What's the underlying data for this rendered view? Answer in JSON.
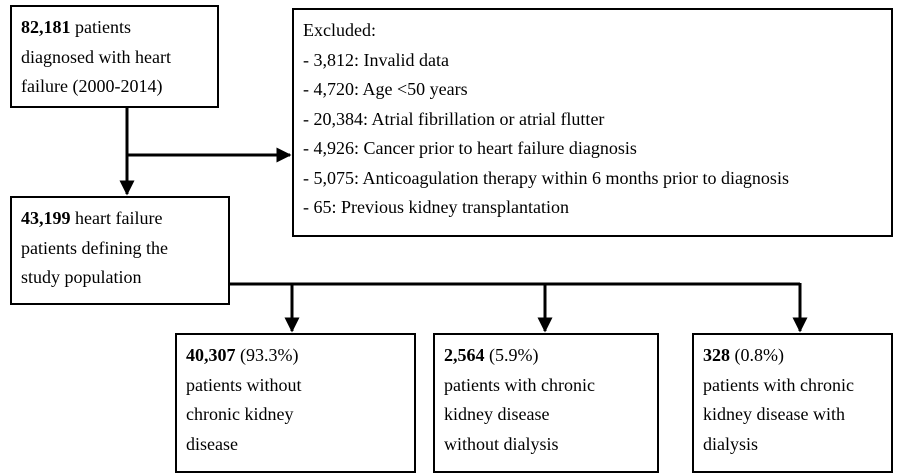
{
  "nodes": [
    {
      "count": "82,181",
      "lines": [
        "patients",
        "diagnosed with heart",
        "failure (2000-2014)"
      ]
    },
    {
      "count": "43,199",
      "lines": [
        "heart failure",
        "patients defining the",
        "study population"
      ]
    },
    {
      "count": "40,307",
      "lines": [
        "(93.3%)",
        "patients without",
        "chronic kidney",
        "disease"
      ]
    },
    {
      "count": "2,564",
      "lines": [
        "(5.9%)",
        "patients with chronic",
        "kidney disease",
        "without dialysis"
      ]
    },
    {
      "count": "328",
      "lines": [
        "(0.8%)",
        "patients with chronic",
        "kidney disease with",
        "dialysis"
      ]
    }
  ],
  "excluded": {
    "title": "Excluded:",
    "items": [
      "- 3,812: Invalid data",
      "- 4,720: Age <50 years",
      "- 20,384: Atrial fibrillation or atrial flutter",
      "- 4,926: Cancer prior to heart failure diagnosis",
      "- 5,075: Anticoagulation therapy within 6 months prior to diagnosis",
      "- 65: Previous kidney transplantation"
    ]
  }
}
